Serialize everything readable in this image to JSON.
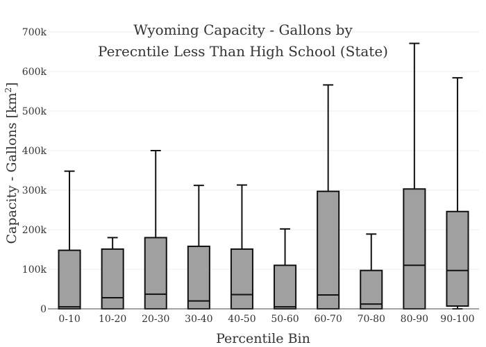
{
  "chart_data": {
    "type": "box",
    "title_lines": [
      "Wyoming Capacity - Gallons by",
      "Perecntile Less Than High School (State)"
    ],
    "xlabel": "Percentile Bin",
    "ylabel_main": "Capacity - Gallons  [km",
    "ylabel_sup": "2",
    "ylabel_end": "]",
    "ylim": [
      0,
      700000
    ],
    "yticks": [
      0,
      100000,
      200000,
      300000,
      400000,
      500000,
      600000,
      700000
    ],
    "ytick_labels": [
      "0",
      "100k",
      "200k",
      "300k",
      "400k",
      "500k",
      "600k",
      "700k"
    ],
    "grid": true,
    "categories": [
      "0-10",
      "10-20",
      "20-30",
      "30-40",
      "40-50",
      "50-60",
      "60-70",
      "70-80",
      "80-90",
      "90-100"
    ],
    "boxes": [
      {
        "min": 0,
        "q1": 0,
        "median": 5000,
        "q3": 148000,
        "max": 348000
      },
      {
        "min": 0,
        "q1": 0,
        "median": 28000,
        "q3": 151000,
        "max": 180000
      },
      {
        "min": 0,
        "q1": 0,
        "median": 37000,
        "q3": 180000,
        "max": 400000
      },
      {
        "min": 0,
        "q1": 0,
        "median": 20000,
        "q3": 158000,
        "max": 312000
      },
      {
        "min": 0,
        "q1": 0,
        "median": 36000,
        "q3": 151000,
        "max": 313000
      },
      {
        "min": 0,
        "q1": 0,
        "median": 5000,
        "q3": 110000,
        "max": 202000
      },
      {
        "min": 0,
        "q1": 0,
        "median": 35000,
        "q3": 297000,
        "max": 566000
      },
      {
        "min": 0,
        "q1": 0,
        "median": 12000,
        "q3": 97000,
        "max": 189000
      },
      {
        "min": 0,
        "q1": 0,
        "median": 110000,
        "q3": 303000,
        "max": 671000
      },
      {
        "min": 0,
        "q1": 7000,
        "median": 97000,
        "q3": 246000,
        "max": 584000
      }
    ],
    "colors": {
      "box_fill": "#a0a0a0",
      "box_stroke": "#111111",
      "grid": "#eeeeee"
    }
  }
}
